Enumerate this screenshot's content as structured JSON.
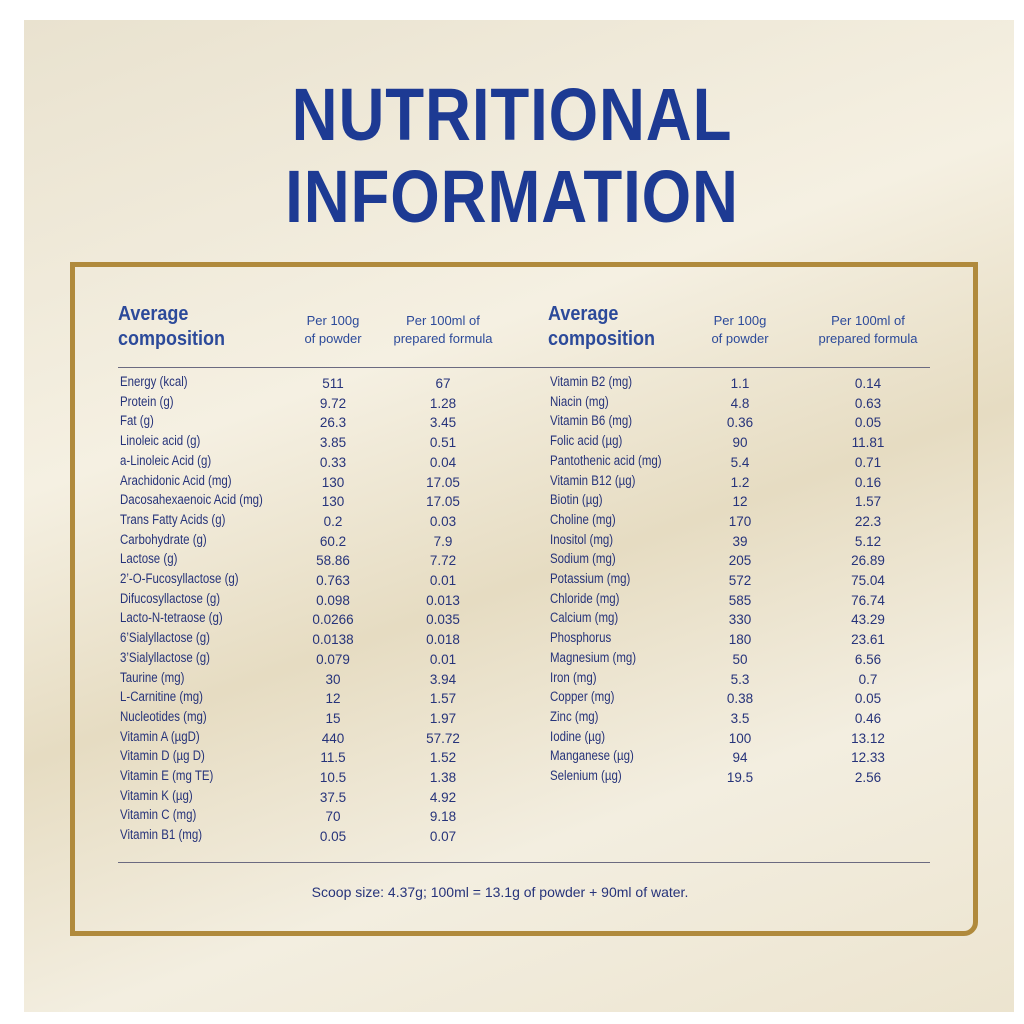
{
  "title": [
    "NUTRITIONAL",
    "INFORMATION"
  ],
  "tables": [
    {
      "headers": [
        [
          "Average",
          "composition"
        ],
        [
          "Per 100g",
          "of powder"
        ],
        [
          "Per 100ml of",
          "prepared formula"
        ]
      ],
      "rows": [
        [
          "Energy (kcal)",
          "511",
          "67"
        ],
        [
          "Protein (g)",
          "9.72",
          "1.28"
        ],
        [
          "Fat (g)",
          "26.3",
          "3.45"
        ],
        [
          "Linoleic acid (g)",
          "3.85",
          "0.51"
        ],
        [
          "a-Linoleic Acid (g)",
          "0.33",
          "0.04"
        ],
        [
          "Arachidonic Acid (mg)",
          "130",
          "17.05"
        ],
        [
          "Dacosahexaenoic Acid (mg)",
          "130",
          "17.05"
        ],
        [
          "Trans Fatty Acids (g)",
          "0.2",
          "0.03"
        ],
        [
          "Carbohydrate (g)",
          "60.2",
          "7.9"
        ],
        [
          "Lactose (g)",
          "58.86",
          "7.72"
        ],
        [
          "2’-O-Fucosyllactose (g)",
          "0.763",
          "0.01"
        ],
        [
          "Difucosyllactose (g)",
          "0.098",
          "0.013"
        ],
        [
          "Lacto-N-tetraose (g)",
          "0.0266",
          "0.035"
        ],
        [
          "6’Sialyllactose (g)",
          "0.0138",
          "0.018"
        ],
        [
          "3’Sialyllactose (g)",
          "0.079",
          "0.01"
        ],
        [
          "Taurine (mg)",
          "30",
          "3.94"
        ],
        [
          "L-Carnitine (mg)",
          "12",
          "1.57"
        ],
        [
          "Nucleotides (mg)",
          "15",
          "1.97"
        ],
        [
          "Vitamin A (µgD)",
          "440",
          "57.72"
        ],
        [
          "Vitamin D (µg D)",
          "11.5",
          "1.52"
        ],
        [
          "Vitamin E (mg TE)",
          "10.5",
          "1.38"
        ],
        [
          "Vitamin K (µg)",
          "37.5",
          "4.92"
        ],
        [
          "Vitamin C (mg)",
          "70",
          "9.18"
        ],
        [
          "Vitamin B1 (mg)",
          "0.05",
          "0.07"
        ]
      ]
    },
    {
      "headers": [
        [
          "Average",
          "composition"
        ],
        [
          "Per 100g",
          "of powder"
        ],
        [
          "Per 100ml of",
          "prepared formula"
        ]
      ],
      "rows": [
        [
          "Vitamin B2 (mg)",
          "1.1",
          "0.14"
        ],
        [
          "Niacin (mg)",
          "4.8",
          "0.63"
        ],
        [
          "Vitamin B6 (mg)",
          "0.36",
          "0.05"
        ],
        [
          "Folic acid (µg)",
          "90",
          "11.81"
        ],
        [
          "Pantothenic acid (mg)",
          "5.4",
          "0.71"
        ],
        [
          "Vitamin B12 (µg)",
          "1.2",
          "0.16"
        ],
        [
          "Biotin (µg)",
          "12",
          "1.57"
        ],
        [
          "Choline (mg)",
          "170",
          "22.3"
        ],
        [
          "Inositol (mg)",
          "39",
          "5.12"
        ],
        [
          "Sodium (mg)",
          "205",
          "26.89"
        ],
        [
          "Potassium (mg)",
          "572",
          "75.04"
        ],
        [
          "Chloride (mg)",
          "585",
          "76.74"
        ],
        [
          "Calcium (mg)",
          "330",
          "43.29"
        ],
        [
          "Phosphorus",
          "180",
          "23.61"
        ],
        [
          "Magnesium (mg)",
          "50",
          "6.56"
        ],
        [
          "Iron (mg)",
          "5.3",
          "0.7"
        ],
        [
          "Copper (mg)",
          "0.38",
          "0.05"
        ],
        [
          "Zinc (mg)",
          "3.5",
          "0.46"
        ],
        [
          "Iodine (µg)",
          "100",
          "13.12"
        ],
        [
          "Manganese (µg)",
          "94",
          "12.33"
        ],
        [
          "Selenium (µg)",
          "19.5",
          "2.56"
        ]
      ]
    }
  ],
  "footnote": "Scoop size: 4.37g; 100ml = 13.1g of powder + 90ml of water."
}
